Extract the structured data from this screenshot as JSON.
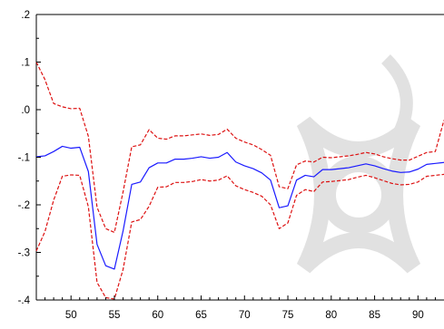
{
  "chart_data": {
    "type": "line",
    "title": "",
    "xlabel": "",
    "ylabel": "",
    "xlim": [
      46,
      93
    ],
    "ylim": [
      -0.4,
      0.2
    ],
    "x_ticks": [
      50,
      55,
      60,
      65,
      70,
      75,
      80,
      85,
      90
    ],
    "x_tick_labels": [
      "50",
      "55",
      "60",
      "65",
      "70",
      "75",
      "80",
      "85",
      "90"
    ],
    "y_ticks": [
      0.2,
      0.1,
      0.0,
      -0.1,
      -0.2,
      -0.3,
      -0.4
    ],
    "y_tick_labels": [
      ".2",
      ".1",
      ".0",
      "-.1",
      "-.2",
      "-.3",
      "-.4"
    ],
    "grid": false,
    "legend": "none",
    "x": [
      46,
      47,
      48,
      49,
      50,
      51,
      52,
      53,
      54,
      55,
      56,
      57,
      58,
      59,
      60,
      61,
      62,
      63,
      64,
      65,
      66,
      67,
      68,
      69,
      70,
      71,
      72,
      73,
      74,
      75,
      76,
      77,
      78,
      79,
      80,
      81,
      82,
      83,
      84,
      85,
      86,
      87,
      88,
      89,
      90,
      91,
      92,
      93
    ],
    "series": [
      {
        "style": "solid",
        "color": "#1a1aff",
        "values": [
          -0.099,
          -0.097,
          -0.088,
          -0.077,
          -0.081,
          -0.079,
          -0.13,
          -0.283,
          -0.328,
          -0.335,
          -0.255,
          -0.157,
          -0.152,
          -0.122,
          -0.112,
          -0.112,
          -0.104,
          -0.104,
          -0.102,
          -0.099,
          -0.102,
          -0.1,
          -0.09,
          -0.11,
          -0.118,
          -0.124,
          -0.133,
          -0.148,
          -0.206,
          -0.202,
          -0.148,
          -0.138,
          -0.141,
          -0.126,
          -0.126,
          -0.124,
          -0.122,
          -0.118,
          -0.114,
          -0.118,
          -0.124,
          -0.129,
          -0.132,
          -0.131,
          -0.125,
          -0.115,
          -0.113,
          -0.111
        ]
      },
      {
        "style": "dashed",
        "color": "#dd1111",
        "values": [
          0.1,
          0.063,
          0.013,
          0.006,
          0.002,
          0.003,
          -0.056,
          -0.205,
          -0.25,
          -0.258,
          -0.173,
          -0.078,
          -0.074,
          -0.042,
          -0.06,
          -0.062,
          -0.055,
          -0.055,
          -0.053,
          -0.051,
          -0.054,
          -0.052,
          -0.041,
          -0.06,
          -0.068,
          -0.074,
          -0.084,
          -0.096,
          -0.162,
          -0.166,
          -0.116,
          -0.108,
          -0.11,
          -0.1,
          -0.101,
          -0.099,
          -0.097,
          -0.094,
          -0.09,
          -0.093,
          -0.099,
          -0.103,
          -0.106,
          -0.106,
          -0.098,
          -0.09,
          -0.088,
          -0.022
        ]
      },
      {
        "style": "dashed",
        "color": "#dd1111",
        "values": [
          -0.297,
          -0.256,
          -0.19,
          -0.14,
          -0.137,
          -0.138,
          -0.204,
          -0.363,
          -0.395,
          -0.398,
          -0.336,
          -0.236,
          -0.231,
          -0.203,
          -0.163,
          -0.162,
          -0.153,
          -0.153,
          -0.151,
          -0.147,
          -0.15,
          -0.148,
          -0.139,
          -0.16,
          -0.168,
          -0.174,
          -0.182,
          -0.2,
          -0.25,
          -0.238,
          -0.18,
          -0.168,
          -0.172,
          -0.152,
          -0.151,
          -0.149,
          -0.147,
          -0.142,
          -0.138,
          -0.143,
          -0.149,
          -0.155,
          -0.158,
          -0.157,
          -0.152,
          -0.14,
          -0.138,
          -0.136
        ]
      }
    ]
  }
}
